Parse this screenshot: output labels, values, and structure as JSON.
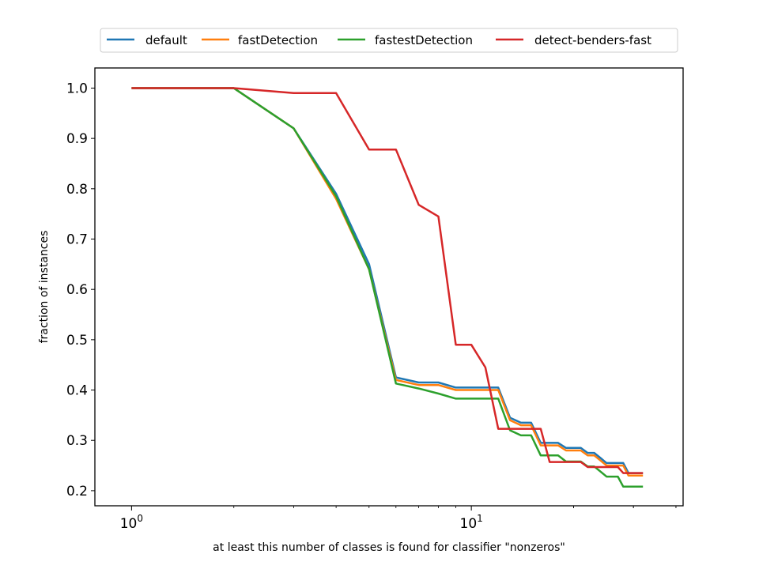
{
  "chart_data": {
    "type": "line",
    "xscale": "log",
    "xlabel": "at least this number of classes is found for classifier \"nonzeros\"",
    "ylabel": "fraction of instances",
    "xlim": [
      0.78,
      42
    ],
    "ylim": [
      0.17,
      1.04
    ],
    "x_ticks": [
      {
        "value": 1,
        "base": "10",
        "exp": "0"
      },
      {
        "value": 10,
        "base": "10",
        "exp": "1"
      }
    ],
    "y_ticks": [
      "0.2",
      "0.3",
      "0.4",
      "0.5",
      "0.6",
      "0.7",
      "0.8",
      "0.9",
      "1.0"
    ],
    "legend_position": "top-center",
    "grid": false,
    "series": [
      {
        "name": "default",
        "color": "#1f77b4",
        "x": [
          1,
          2,
          3,
          4,
          5,
          6,
          7,
          8,
          9,
          10,
          11,
          12,
          13,
          14,
          15,
          16,
          17,
          18,
          19,
          20,
          21,
          22,
          23,
          24,
          25,
          26,
          27,
          28,
          29,
          30,
          31,
          32
        ],
        "y": [
          1.0,
          1.0,
          0.92,
          0.79,
          0.65,
          0.425,
          0.415,
          0.415,
          0.405,
          0.405,
          0.405,
          0.405,
          0.345,
          0.335,
          0.335,
          0.295,
          0.295,
          0.295,
          0.285,
          0.285,
          0.285,
          0.275,
          0.275,
          0.265,
          0.255,
          0.255,
          0.255,
          0.255,
          0.235,
          0.235,
          0.235,
          0.235
        ]
      },
      {
        "name": "fastDetection",
        "color": "#ff7f0e",
        "x": [
          1,
          2,
          3,
          4,
          5,
          6,
          7,
          8,
          9,
          10,
          11,
          12,
          13,
          14,
          15,
          16,
          17,
          18,
          19,
          20,
          21,
          22,
          23,
          24,
          25,
          26,
          27,
          28,
          29,
          30,
          31,
          32
        ],
        "y": [
          1.0,
          1.0,
          0.92,
          0.78,
          0.64,
          0.42,
          0.41,
          0.41,
          0.4,
          0.4,
          0.4,
          0.4,
          0.34,
          0.33,
          0.33,
          0.29,
          0.29,
          0.29,
          0.28,
          0.28,
          0.28,
          0.27,
          0.27,
          0.26,
          0.25,
          0.25,
          0.25,
          0.25,
          0.23,
          0.23,
          0.23,
          0.23
        ]
      },
      {
        "name": "fastestDetection",
        "color": "#2ca02c",
        "x": [
          1,
          2,
          3,
          4,
          5,
          6,
          7,
          8,
          9,
          10,
          11,
          12,
          13,
          14,
          15,
          16,
          17,
          18,
          19,
          20,
          21,
          22,
          23,
          24,
          25,
          26,
          27,
          28,
          29,
          30,
          31,
          32
        ],
        "y": [
          1.0,
          1.0,
          0.92,
          0.785,
          0.64,
          0.413,
          0.403,
          0.393,
          0.383,
          0.383,
          0.383,
          0.383,
          0.32,
          0.31,
          0.31,
          0.27,
          0.27,
          0.27,
          0.258,
          0.258,
          0.258,
          0.248,
          0.248,
          0.238,
          0.228,
          0.228,
          0.228,
          0.208,
          0.208,
          0.208,
          0.208,
          0.208
        ]
      },
      {
        "name": "detect-benders-fast",
        "color": "#d62728",
        "x": [
          1,
          2,
          3,
          4,
          5,
          6,
          7,
          8,
          9,
          10,
          11,
          12,
          13,
          14,
          15,
          16,
          17,
          18,
          19,
          20,
          21,
          22,
          23,
          24,
          25,
          26,
          27,
          28,
          29,
          30,
          31,
          32
        ],
        "y": [
          1.0,
          1.0,
          0.99,
          0.99,
          0.878,
          0.878,
          0.768,
          0.745,
          0.49,
          0.49,
          0.445,
          0.323,
          0.323,
          0.323,
          0.323,
          0.323,
          0.257,
          0.257,
          0.257,
          0.257,
          0.257,
          0.247,
          0.247,
          0.247,
          0.247,
          0.247,
          0.247,
          0.235,
          0.235,
          0.235,
          0.235,
          0.235
        ]
      }
    ]
  }
}
